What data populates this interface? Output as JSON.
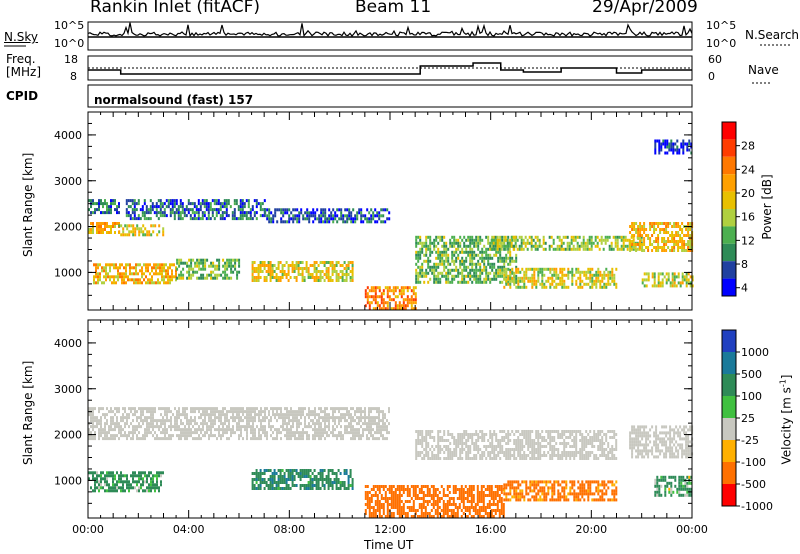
{
  "header": {
    "station": "Rankin Inlet (fitACF)",
    "beam": "Beam 11",
    "date": "29/Apr/2009"
  },
  "noise_panel": {
    "left_label": "N.Sky",
    "right_label": "N.Search",
    "left_ticks": [
      "10^5",
      "10^0"
    ],
    "right_ticks": [
      "10^5",
      "10^0"
    ]
  },
  "freq_panel": {
    "left_label_1": "Freq.",
    "left_label_2": "[MHz]",
    "right_label": "Nave",
    "left_ticks": [
      "18",
      "8"
    ],
    "right_ticks": [
      "60",
      "0"
    ]
  },
  "cpid": {
    "label": "CPID",
    "program": "normalsound (fast) 157"
  },
  "x_axis": {
    "label": "Time UT",
    "ticks": [
      "00:00",
      "04:00",
      "08:00",
      "12:00",
      "16:00",
      "20:00",
      "00:00"
    ]
  },
  "y_axis": {
    "label": "Slant Range [km]",
    "ticks": [
      "1000",
      "2000",
      "3000",
      "4000"
    ]
  },
  "power_bar": {
    "label": "Power [dB]",
    "ticks": [
      "28",
      "24",
      "20",
      "16",
      "12",
      "8",
      "4"
    ],
    "colors": [
      "#ff0000",
      "#ff3c00",
      "#ff7800",
      "#ffa000",
      "#e8c000",
      "#b0d040",
      "#4caf50",
      "#2e8b57",
      "#2040a0",
      "#0000ff"
    ]
  },
  "velocity_bar": {
    "label": "Velocity",
    "unit": "[m s",
    "unit_sup": "-1",
    "unit_end": "]",
    "ticks": [
      "1000",
      "500",
      "100",
      "25",
      "-25",
      "-100",
      "-500",
      "-1000"
    ],
    "colors": [
      "#2040c0",
      "#1a7a9a",
      "#2e8b57",
      "#40c040",
      "#c8c8c0",
      "#ffb000",
      "#ff7000",
      "#ff0000"
    ]
  },
  "chart_data": {
    "type": "heatmap",
    "title": "Rankin Inlet (fitACF)",
    "x_range_hours": [
      0,
      24
    ],
    "y_range_km": [
      180,
      4500
    ],
    "xlabel": "Time UT",
    "ylabel": "Slant Range [km]",
    "power_panel": {
      "bands": [
        {
          "t0": 0.0,
          "t1": 1.2,
          "r0": 2300,
          "r1": 2600,
          "power": 10
        },
        {
          "t0": 0.0,
          "t1": 1.2,
          "r0": 1900,
          "r1": 2100,
          "power": 22
        },
        {
          "t0": 1.2,
          "t1": 3.0,
          "r0": 1800,
          "r1": 2050,
          "power": 19
        },
        {
          "t0": 1.5,
          "t1": 7.0,
          "r0": 2200,
          "r1": 2600,
          "power": 9
        },
        {
          "t0": 7.0,
          "t1": 12.0,
          "r0": 2100,
          "r1": 2400,
          "power": 8
        },
        {
          "t0": 0.2,
          "t1": 3.5,
          "r0": 800,
          "r1": 1200,
          "power": 21
        },
        {
          "t0": 3.5,
          "t1": 6.0,
          "r0": 900,
          "r1": 1300,
          "power": 14
        },
        {
          "t0": 6.5,
          "t1": 10.5,
          "r0": 800,
          "r1": 1250,
          "power": 19
        },
        {
          "t0": 11.0,
          "t1": 13.0,
          "r0": 200,
          "r1": 700,
          "power": 24
        },
        {
          "t0": 13.0,
          "t1": 17.0,
          "r0": 800,
          "r1": 1800,
          "power": 14
        },
        {
          "t0": 16.0,
          "t1": 22.0,
          "r0": 1500,
          "r1": 1800,
          "power": 16
        },
        {
          "t0": 16.5,
          "t1": 21.0,
          "r0": 700,
          "r1": 1100,
          "power": 18
        },
        {
          "t0": 21.5,
          "t1": 24.0,
          "r0": 1500,
          "r1": 2100,
          "power": 20
        },
        {
          "t0": 22.0,
          "t1": 24.0,
          "r0": 700,
          "r1": 1000,
          "power": 17
        },
        {
          "t0": 22.5,
          "t1": 24.0,
          "r0": 3600,
          "r1": 3900,
          "power": 6
        }
      ]
    },
    "velocity_panel": {
      "bands": [
        {
          "t0": 0.0,
          "t1": 12.0,
          "r0": 1900,
          "r1": 2600,
          "velocity": 0
        },
        {
          "t0": 0.0,
          "t1": 3.0,
          "r0": 800,
          "r1": 1200,
          "velocity": 150
        },
        {
          "t0": 6.5,
          "t1": 10.5,
          "r0": 800,
          "r1": 1250,
          "velocity": 200
        },
        {
          "t0": 11.0,
          "t1": 16.5,
          "r0": 200,
          "r1": 900,
          "velocity": -300
        },
        {
          "t0": 13.0,
          "t1": 21.0,
          "r0": 1500,
          "r1": 2100,
          "velocity": 0
        },
        {
          "t0": 16.5,
          "t1": 21.0,
          "r0": 600,
          "r1": 1000,
          "velocity": -200
        },
        {
          "t0": 21.5,
          "t1": 24.0,
          "r0": 1500,
          "r1": 2200,
          "velocity": 0
        },
        {
          "t0": 22.5,
          "t1": 24.0,
          "r0": 700,
          "r1": 1100,
          "velocity": 120
        }
      ]
    }
  }
}
